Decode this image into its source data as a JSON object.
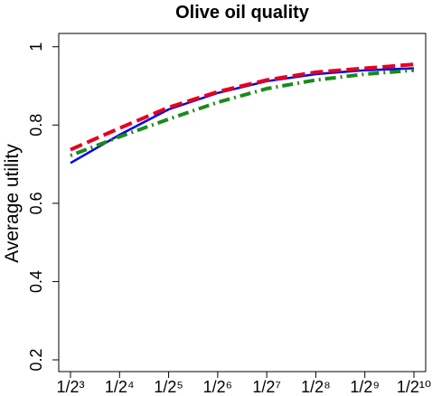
{
  "chart_data": {
    "type": "line",
    "title": "Olive oil quality",
    "y_label": "Average utility",
    "categories": [
      "1/2³",
      "1/2⁴",
      "1/2⁵",
      "1/2⁶",
      "1/2⁷",
      "1/2⁸",
      "1/2⁹",
      "1/2¹⁰"
    ],
    "series": [
      {
        "color": "#0000ee",
        "dash": "solid",
        "values": [
          0.703,
          0.775,
          0.84,
          0.882,
          0.912,
          0.93,
          0.94,
          0.945
        ]
      },
      {
        "color": "#e8001c",
        "dash": "dashed",
        "values": [
          0.737,
          0.792,
          0.845,
          0.885,
          0.915,
          0.935,
          0.945,
          0.955
        ]
      },
      {
        "color": "#1a8a1a",
        "dash": "dotdash",
        "values": [
          0.722,
          0.77,
          0.815,
          0.858,
          0.893,
          0.915,
          0.93,
          0.94
        ]
      }
    ],
    "ylim": [
      0.17,
      1.034
    ],
    "yticks": [
      0.2,
      0.4,
      0.6,
      0.8,
      1.0
    ]
  }
}
